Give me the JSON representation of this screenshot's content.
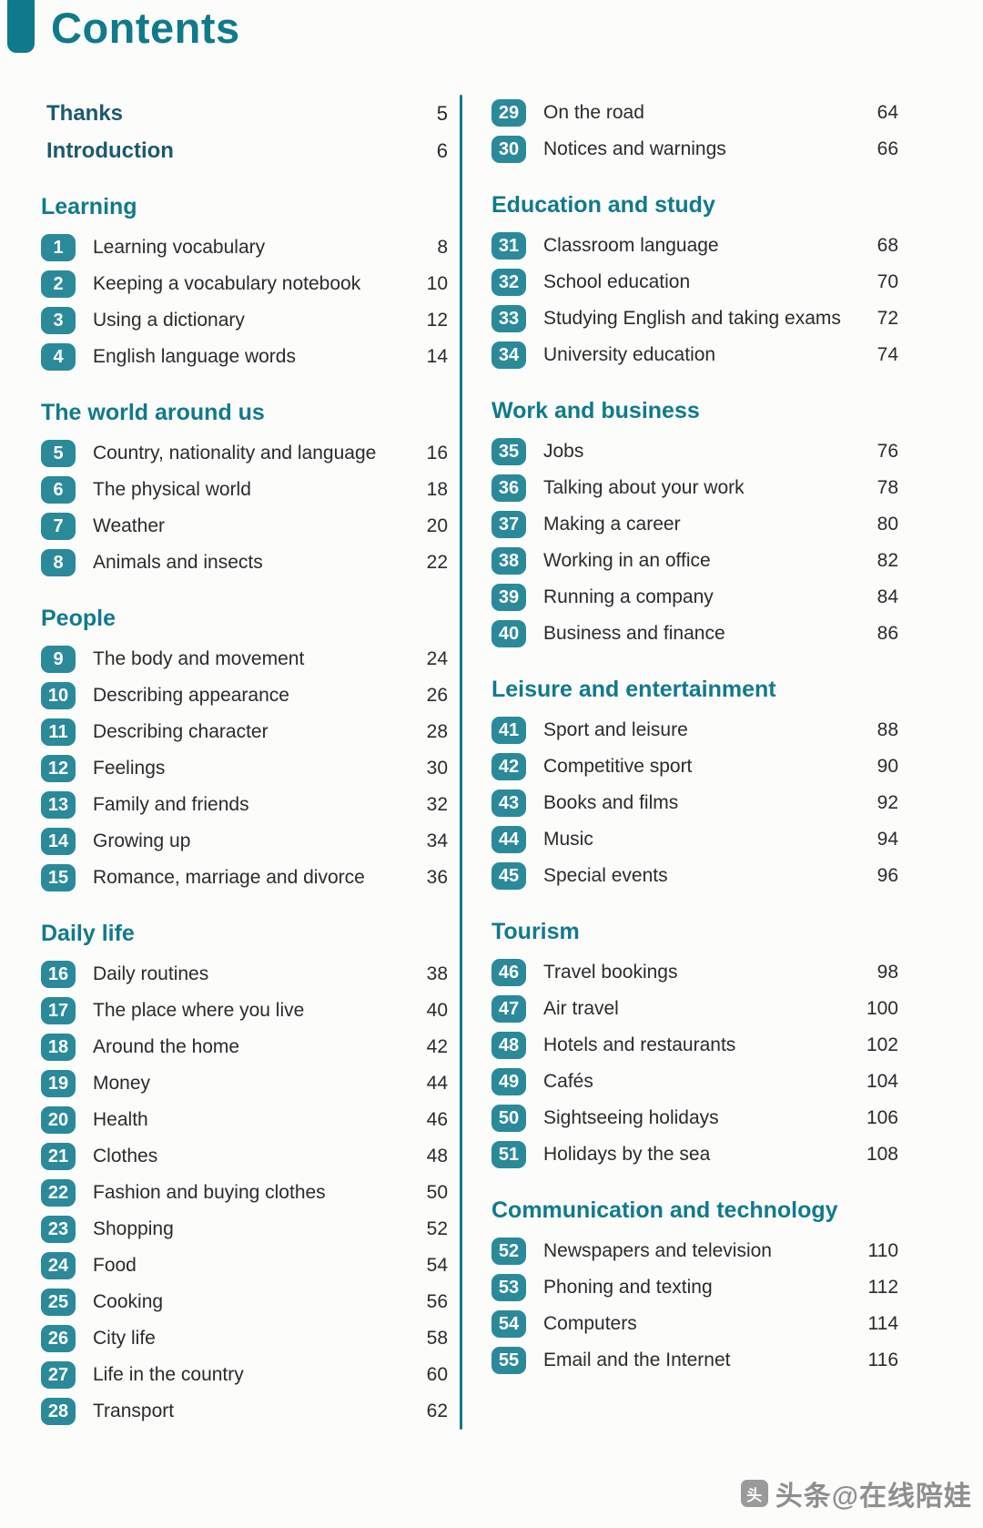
{
  "page": {
    "title": "Contents",
    "watermark_text": "头条@在线陪娃"
  },
  "colors": {
    "accent": "#107a8c",
    "badge": "#2a8a99",
    "text": "#2b2b2b"
  },
  "columns": [
    {
      "blocks": [
        {
          "front": [
            {
              "label": "Thanks",
              "page": "5"
            },
            {
              "label": "Introduction",
              "page": "6"
            }
          ]
        },
        {
          "title": "Learning",
          "units": [
            {
              "num": "1",
              "title": "Learning vocabulary",
              "page": "8"
            },
            {
              "num": "2",
              "title": "Keeping a vocabulary notebook",
              "page": "10"
            },
            {
              "num": "3",
              "title": "Using a dictionary",
              "page": "12"
            },
            {
              "num": "4",
              "title": "English language words",
              "page": "14"
            }
          ]
        },
        {
          "title": "The world around us",
          "units": [
            {
              "num": "5",
              "title": "Country, nationality and language",
              "page": "16"
            },
            {
              "num": "6",
              "title": "The physical world",
              "page": "18"
            },
            {
              "num": "7",
              "title": "Weather",
              "page": "20"
            },
            {
              "num": "8",
              "title": "Animals and insects",
              "page": "22"
            }
          ]
        },
        {
          "title": "People",
          "units": [
            {
              "num": "9",
              "title": "The body and movement",
              "page": "24"
            },
            {
              "num": "10",
              "title": "Describing appearance",
              "page": "26"
            },
            {
              "num": "11",
              "title": "Describing character",
              "page": "28"
            },
            {
              "num": "12",
              "title": "Feelings",
              "page": "30"
            },
            {
              "num": "13",
              "title": "Family and friends",
              "page": "32"
            },
            {
              "num": "14",
              "title": "Growing up",
              "page": "34"
            },
            {
              "num": "15",
              "title": "Romance, marriage and divorce",
              "page": "36"
            }
          ]
        },
        {
          "title": "Daily life",
          "units": [
            {
              "num": "16",
              "title": "Daily routines",
              "page": "38"
            },
            {
              "num": "17",
              "title": "The place where you live",
              "page": "40"
            },
            {
              "num": "18",
              "title": "Around the home",
              "page": "42"
            },
            {
              "num": "19",
              "title": "Money",
              "page": "44"
            },
            {
              "num": "20",
              "title": "Health",
              "page": "46"
            },
            {
              "num": "21",
              "title": "Clothes",
              "page": "48"
            },
            {
              "num": "22",
              "title": "Fashion and buying clothes",
              "page": "50"
            },
            {
              "num": "23",
              "title": "Shopping",
              "page": "52"
            },
            {
              "num": "24",
              "title": "Food",
              "page": "54"
            },
            {
              "num": "25",
              "title": "Cooking",
              "page": "56"
            },
            {
              "num": "26",
              "title": "City life",
              "page": "58"
            },
            {
              "num": "27",
              "title": "Life in the country",
              "page": "60"
            },
            {
              "num": "28",
              "title": "Transport",
              "page": "62"
            }
          ]
        }
      ]
    },
    {
      "blocks": [
        {
          "units": [
            {
              "num": "29",
              "title": "On the road",
              "page": "64"
            },
            {
              "num": "30",
              "title": "Notices and warnings",
              "page": "66"
            }
          ]
        },
        {
          "title": "Education and study",
          "units": [
            {
              "num": "31",
              "title": "Classroom language",
              "page": "68"
            },
            {
              "num": "32",
              "title": "School education",
              "page": "70"
            },
            {
              "num": "33",
              "title": "Studying English and taking exams",
              "page": "72"
            },
            {
              "num": "34",
              "title": "University education",
              "page": "74"
            }
          ]
        },
        {
          "title": "Work and business",
          "units": [
            {
              "num": "35",
              "title": "Jobs",
              "page": "76"
            },
            {
              "num": "36",
              "title": "Talking about your work",
              "page": "78"
            },
            {
              "num": "37",
              "title": "Making a career",
              "page": "80"
            },
            {
              "num": "38",
              "title": "Working in an office",
              "page": "82"
            },
            {
              "num": "39",
              "title": "Running a company",
              "page": "84"
            },
            {
              "num": "40",
              "title": "Business and finance",
              "page": "86"
            }
          ]
        },
        {
          "title": "Leisure and entertainment",
          "units": [
            {
              "num": "41",
              "title": "Sport and leisure",
              "page": "88"
            },
            {
              "num": "42",
              "title": "Competitive sport",
              "page": "90"
            },
            {
              "num": "43",
              "title": "Books and films",
              "page": "92"
            },
            {
              "num": "44",
              "title": "Music",
              "page": "94"
            },
            {
              "num": "45",
              "title": "Special events",
              "page": "96"
            }
          ]
        },
        {
          "title": "Tourism",
          "units": [
            {
              "num": "46",
              "title": "Travel bookings",
              "page": "98"
            },
            {
              "num": "47",
              "title": "Air travel",
              "page": "100"
            },
            {
              "num": "48",
              "title": "Hotels and restaurants",
              "page": "102"
            },
            {
              "num": "49",
              "title": "Cafés",
              "page": "104"
            },
            {
              "num": "50",
              "title": "Sightseeing holidays",
              "page": "106"
            },
            {
              "num": "51",
              "title": "Holidays by the sea",
              "page": "108"
            }
          ]
        },
        {
          "title": "Communication and technology",
          "units": [
            {
              "num": "52",
              "title": "Newspapers and television",
              "page": "110"
            },
            {
              "num": "53",
              "title": "Phoning and texting",
              "page": "112"
            },
            {
              "num": "54",
              "title": "Computers",
              "page": "114"
            },
            {
              "num": "55",
              "title": "Email and the Internet",
              "page": "116"
            }
          ]
        }
      ]
    }
  ]
}
